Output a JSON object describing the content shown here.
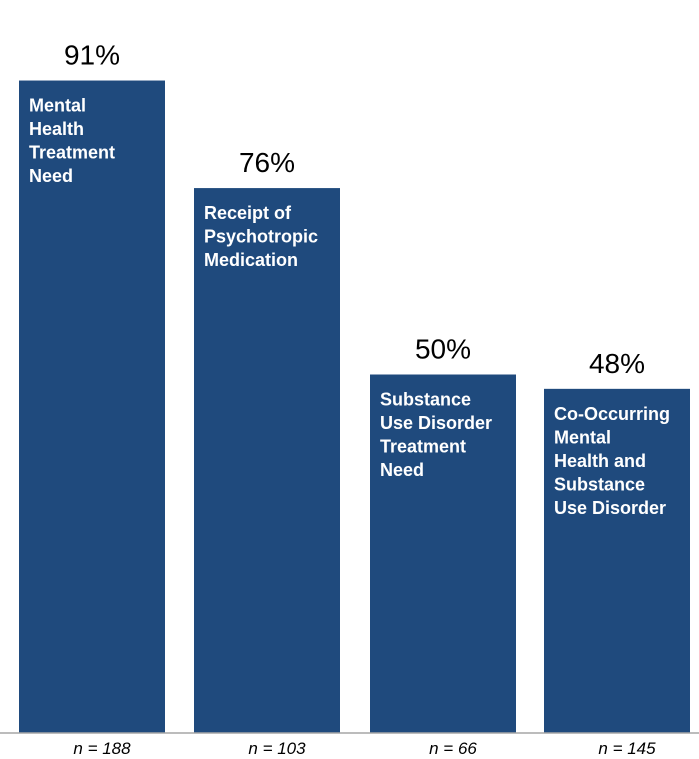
{
  "chart_data": {
    "type": "bar",
    "title": "",
    "xlabel": "",
    "ylabel": "",
    "unit": "%",
    "ylim": [
      0,
      100
    ],
    "grid": false,
    "legend": "none",
    "colors": {
      "bar": "#1f4a7d",
      "bar_text": "#ffffff",
      "axis": "#a6a6a6"
    },
    "categories": [
      "Mental Health Treatment Need",
      "Receipt of Psychotropic Medication",
      "Substance Use Disorder Treatment Need",
      "Co-Occurring Mental Health and Substance Use Disorder"
    ],
    "values": [
      91,
      76,
      50,
      48
    ],
    "value_labels": [
      "91%",
      "76%",
      "50%",
      "48%"
    ],
    "bar_label_lines": [
      [
        "Mental",
        "Health",
        "Treatment",
        "Need"
      ],
      [
        "Receipt of",
        "Psychotropic",
        "Medication"
      ],
      [
        "Substance",
        "Use Disorder",
        "Treatment",
        "Need"
      ],
      [
        "Co-Occurring",
        "Mental",
        "Health and",
        "Substance",
        "Use Disorder"
      ]
    ],
    "n_labels": [
      "n = 188",
      "n = 103",
      "n = 66",
      "n = 145"
    ]
  }
}
